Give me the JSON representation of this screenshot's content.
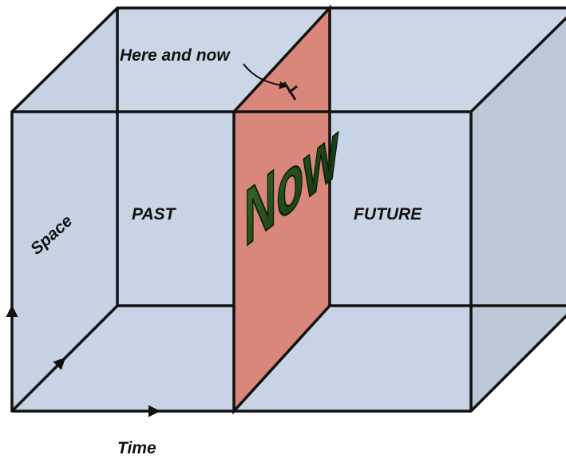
{
  "labels": {
    "here_and_now": "Here and now",
    "now": "Now",
    "past": "PAST",
    "future": "FUTURE",
    "space": "Space",
    "time": "Time"
  }
}
